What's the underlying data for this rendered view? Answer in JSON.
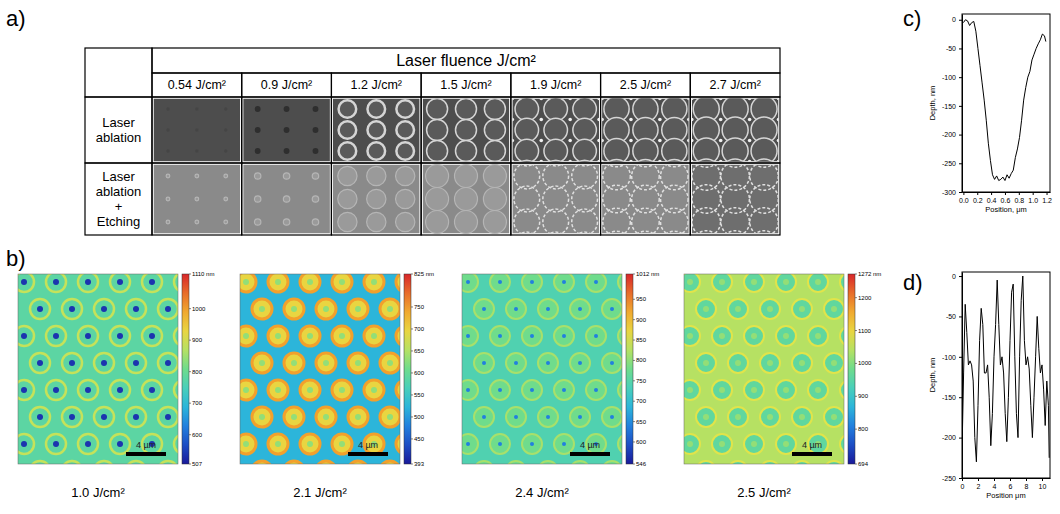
{
  "panel_a": {
    "letter": "a)",
    "header": "Laser fluence J/cm²",
    "columns": [
      "0.54 J/cm²",
      "0.9 J/cm²",
      "1.2 J/cm²",
      "1.5 J/cm²",
      "1.9 J/cm²",
      "2.5 J/cm²",
      "2.7 J/cm²"
    ],
    "rows": [
      "Laser ablation",
      "Laser ablation + Etching"
    ]
  },
  "panel_b": {
    "letter": "b)",
    "maps": [
      {
        "caption": "1.0 J/cm²",
        "scale_bar": "4 µm",
        "colorbar": {
          "range": [
            507,
            1110
          ],
          "ticks": [
            {
              "value": 1110,
              "label": "1110 nm"
            },
            1000,
            900,
            800,
            700,
            600,
            507
          ]
        }
      },
      {
        "caption": "2.1 J/cm²",
        "scale_bar": "4 µm",
        "colorbar": {
          "range": [
            393,
            825
          ],
          "ticks": [
            {
              "value": 825,
              "label": "825 nm"
            },
            750,
            700,
            650,
            600,
            550,
            500,
            450,
            393
          ]
        }
      },
      {
        "caption": "2.4 J/cm²",
        "scale_bar": "4 µm",
        "colorbar": {
          "range": [
            546,
            1012
          ],
          "ticks": [
            {
              "value": 1012,
              "label": "1012 nm"
            },
            950,
            900,
            850,
            800,
            750,
            700,
            650,
            600,
            546
          ]
        }
      },
      {
        "caption": "2.5 J/cm²",
        "scale_bar": "4 µm",
        "colorbar": {
          "range": [
            694,
            1272
          ],
          "ticks": [
            {
              "value": 1272,
              "label": "1272 nm"
            },
            1200,
            1100,
            1000,
            900,
            800,
            694
          ]
        }
      }
    ]
  },
  "chart_data": [
    {
      "type": "line",
      "title": "c)",
      "x_label": "Position, μm",
      "y_label": "Depth, nm",
      "color": "#000000",
      "x": [
        0,
        0.03,
        0.06,
        0.09,
        0.12,
        0.15,
        0.18,
        0.21,
        0.24,
        0.27,
        0.3,
        0.33,
        0.36,
        0.39,
        0.42,
        0.45,
        0.48,
        0.51,
        0.54,
        0.57,
        0.6,
        0.63,
        0.66,
        0.69,
        0.72,
        0.75,
        0.78,
        0.81,
        0.84,
        0.87,
        0.9,
        0.93,
        0.96,
        0.99,
        1.02,
        1.05,
        1.08,
        1.11,
        1.14,
        1.17,
        1.19
      ],
      "values": [
        -5,
        0,
        -2,
        -10,
        -5,
        -3,
        -20,
        -50,
        -80,
        -110,
        -140,
        -175,
        -215,
        -245,
        -270,
        -278,
        -272,
        -280,
        -278,
        -274,
        -280,
        -270,
        -276,
        -268,
        -262,
        -240,
        -225,
        -205,
        -175,
        -140,
        -118,
        -100,
        -90,
        -70,
        -60,
        -50,
        -42,
        -35,
        -25,
        -28,
        -38
      ],
      "xlim": [
        -0.02,
        1.25
      ],
      "ylim": [
        -300,
        10
      ],
      "xticks": [
        {
          "value": 0,
          "label": "0.0"
        },
        0.2,
        0.4,
        0.6,
        0.8,
        {
          "value": 1,
          "label": "1.0"
        },
        1.2
      ],
      "yticks": [
        0,
        -50,
        -100,
        -150,
        -200,
        -250,
        -300
      ]
    },
    {
      "type": "line",
      "title": "d)",
      "x_label": "Position μm",
      "y_label": "Depth, nm",
      "color": "#000000",
      "x": [
        0,
        0.2,
        0.4,
        0.6,
        0.8,
        1,
        1.2,
        1.4,
        1.6,
        1.8,
        2,
        2.2,
        2.4,
        2.6,
        2.8,
        3,
        3.2,
        3.4,
        3.6,
        3.8,
        4,
        4.2,
        4.4,
        4.6,
        4.8,
        5,
        5.2,
        5.4,
        5.6,
        5.8,
        6,
        6.2,
        6.4,
        6.6,
        6.8,
        7,
        7.2,
        7.4,
        7.6,
        7.8,
        8,
        8.2,
        8.4,
        8.6,
        8.8,
        9,
        9.2,
        9.4,
        9.6,
        9.8,
        10,
        10.2,
        10.4,
        10.6,
        10.8,
        10.9
      ],
      "values": [
        -220,
        -120,
        -35,
        -70,
        -110,
        -105,
        -110,
        -130,
        -200,
        -230,
        -160,
        -80,
        -40,
        -60,
        -120,
        -120,
        -110,
        -150,
        -210,
        -170,
        -100,
        -60,
        -5,
        -60,
        -110,
        -100,
        -120,
        -170,
        -205,
        -150,
        -80,
        -20,
        -10,
        -100,
        -170,
        -200,
        -100,
        -30,
        0,
        -80,
        -110,
        -100,
        -115,
        -160,
        -200,
        -150,
        -100,
        -50,
        -90,
        -120,
        -110,
        -140,
        -185,
        -130,
        -160,
        -225
      ],
      "xlim": [
        0,
        11
      ],
      "ylim": [
        -250,
        5
      ],
      "xticks": [
        0,
        2,
        4,
        6,
        8,
        10
      ],
      "yticks": [
        0,
        -50,
        -100,
        -150,
        -200,
        -250
      ]
    }
  ]
}
